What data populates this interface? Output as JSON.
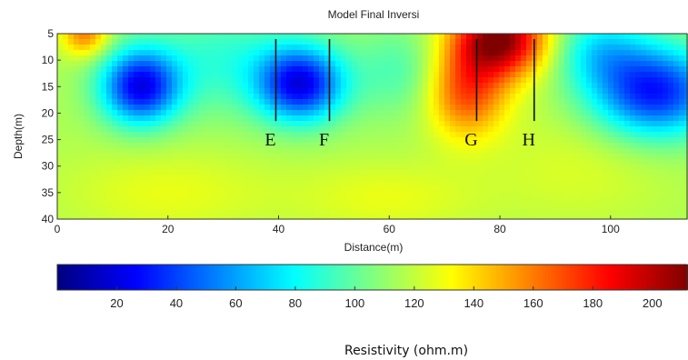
{
  "chart_data": {
    "type": "heatmap",
    "title": "Model Final Inversi",
    "xlabel": "Distance(m)",
    "ylabel": "Depth(m)",
    "xlim": [
      0,
      114
    ],
    "ylim": [
      5,
      40
    ],
    "y_reversed": true,
    "xticks": [
      0,
      20,
      40,
      60,
      80,
      100
    ],
    "yticks": [
      5,
      10,
      15,
      20,
      25,
      30,
      35,
      40
    ],
    "colormap": "jet",
    "value_range": [
      0,
      212
    ],
    "background_value": 115,
    "anomalies": [
      {
        "x": 15,
        "y": 15,
        "value": 25,
        "sx": 5,
        "sy": 5
      },
      {
        "x": 44,
        "y": 14.5,
        "value": 25,
        "sx": 5.5,
        "sy": 5
      },
      {
        "x": 108,
        "y": 16,
        "value": 30,
        "sx": 8,
        "sy": 6
      },
      {
        "x": 80,
        "y": 6,
        "value": 210,
        "sx": 6,
        "sy": 5
      },
      {
        "x": 74,
        "y": 16,
        "value": 170,
        "sx": 5,
        "sy": 6
      },
      {
        "x": 5,
        "y": 5,
        "value": 160,
        "sx": 3,
        "sy": 3
      },
      {
        "x": 30,
        "y": 10,
        "value": 90,
        "sx": 9,
        "sy": 7
      },
      {
        "x": 62,
        "y": 12,
        "value": 95,
        "sx": 6,
        "sy": 6
      },
      {
        "x": 98,
        "y": 8,
        "value": 80,
        "sx": 6,
        "sy": 5
      },
      {
        "x": 20,
        "y": 35,
        "value": 128,
        "sx": 14,
        "sy": 6
      },
      {
        "x": 60,
        "y": 36,
        "value": 128,
        "sx": 12,
        "sy": 5
      },
      {
        "x": 95,
        "y": 30,
        "value": 125,
        "sx": 12,
        "sy": 8
      }
    ],
    "markers": [
      {
        "label": "E",
        "x": 39.5,
        "depth_top": 5,
        "depth_bottom": 21.5
      },
      {
        "label": "F",
        "x": 49.2,
        "depth_top": 5,
        "depth_bottom": 21.5
      },
      {
        "label": "G",
        "x": 75.8,
        "depth_top": 5,
        "depth_bottom": 21.5
      },
      {
        "label": "H",
        "x": 86.2,
        "depth_top": 5,
        "depth_bottom": 21.5
      }
    ],
    "colorbar": {
      "ticks": [
        20,
        40,
        60,
        80,
        100,
        120,
        140,
        160,
        180,
        200
      ],
      "range": [
        0,
        212
      ],
      "label": "Resistivity (ohm.m)"
    }
  }
}
